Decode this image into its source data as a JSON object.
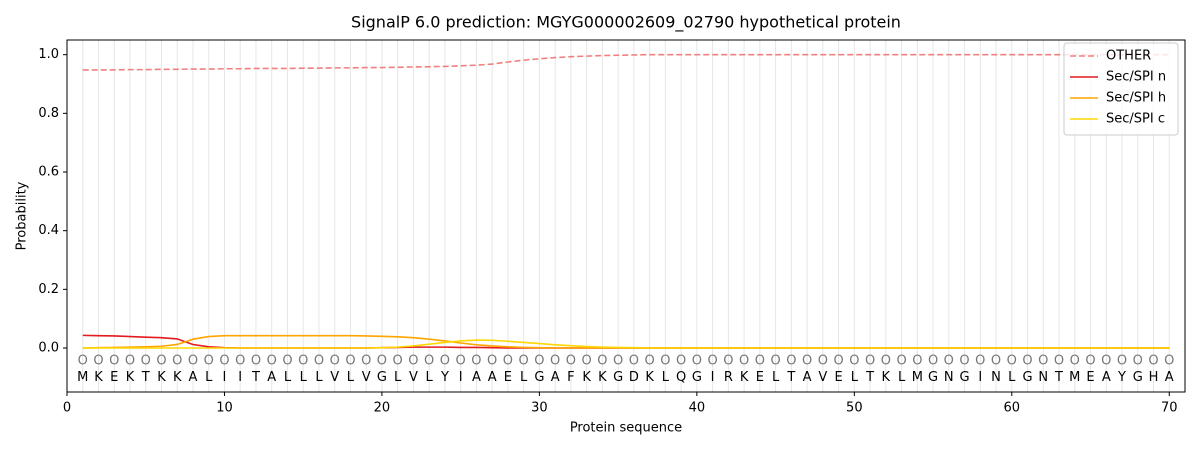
{
  "chart_data": {
    "type": "line",
    "title": "SignalP 6.0 prediction: MGYG000002609_02790 hypothetical protein",
    "xlabel": "Protein sequence",
    "ylabel": "Probability",
    "x": [
      1,
      2,
      3,
      4,
      5,
      6,
      7,
      8,
      9,
      10,
      11,
      12,
      13,
      14,
      15,
      16,
      17,
      18,
      19,
      20,
      21,
      22,
      23,
      24,
      25,
      26,
      27,
      28,
      29,
      30,
      31,
      32,
      33,
      34,
      35,
      36,
      37,
      38,
      39,
      40,
      41,
      42,
      43,
      44,
      45,
      46,
      47,
      48,
      49,
      50,
      51,
      52,
      53,
      54,
      55,
      56,
      57,
      58,
      59,
      60,
      61,
      62,
      63,
      64,
      65,
      66,
      67,
      68,
      69,
      70
    ],
    "residues": [
      "M",
      "K",
      "E",
      "K",
      "T",
      "K",
      "K",
      "A",
      "L",
      "I",
      "I",
      "T",
      "A",
      "L",
      "L",
      "L",
      "V",
      "L",
      "V",
      "G",
      "L",
      "V",
      "L",
      "Y",
      "I",
      "A",
      "A",
      "E",
      "L",
      "G",
      "A",
      "F",
      "K",
      "K",
      "G",
      "D",
      "K",
      "L",
      "Q",
      "G",
      "I",
      "R",
      "K",
      "E",
      "L",
      "T",
      "A",
      "V",
      "E",
      "L",
      "T",
      "K",
      "L",
      "M",
      "G",
      "N",
      "G",
      "I",
      "N",
      "L",
      "G",
      "N",
      "T",
      "M",
      "E",
      "A",
      "Y",
      "G",
      "H",
      "A"
    ],
    "predictions": [
      "O",
      "O",
      "O",
      "O",
      "O",
      "O",
      "O",
      "O",
      "O",
      "O",
      "O",
      "O",
      "O",
      "O",
      "O",
      "O",
      "O",
      "O",
      "O",
      "O",
      "O",
      "O",
      "O",
      "O",
      "O",
      "O",
      "O",
      "O",
      "O",
      "O",
      "O",
      "O",
      "O",
      "O",
      "O",
      "O",
      "O",
      "O",
      "O",
      "O",
      "O",
      "O",
      "O",
      "O",
      "O",
      "O",
      "O",
      "O",
      "O",
      "O",
      "O",
      "O",
      "O",
      "O",
      "O",
      "O",
      "O",
      "O",
      "O",
      "O",
      "O",
      "O",
      "O",
      "O",
      "O",
      "O",
      "O",
      "O",
      "O",
      "O"
    ],
    "series": [
      {
        "name": "OTHER",
        "color": "#f08080",
        "dashed": true,
        "values": [
          0.948,
          0.948,
          0.948,
          0.949,
          0.949,
          0.95,
          0.95,
          0.951,
          0.951,
          0.952,
          0.952,
          0.953,
          0.953,
          0.953,
          0.954,
          0.954,
          0.955,
          0.955,
          0.956,
          0.956,
          0.957,
          0.958,
          0.959,
          0.96,
          0.962,
          0.964,
          0.968,
          0.975,
          0.981,
          0.986,
          0.99,
          0.993,
          0.995,
          0.997,
          0.998,
          0.999,
          1.0,
          1.0,
          1.0,
          1.0,
          1.0,
          1.0,
          1.0,
          1.0,
          1.0,
          1.0,
          1.0,
          1.0,
          1.0,
          1.0,
          1.0,
          1.0,
          1.0,
          1.0,
          1.0,
          1.0,
          1.0,
          1.0,
          1.0,
          1.0,
          1.0,
          1.0,
          1.0,
          1.0,
          1.0,
          1.0,
          1.0,
          1.0,
          1.0,
          1.0
        ]
      },
      {
        "name": "Sec/SPI n",
        "color": "#e41a1c",
        "dashed": false,
        "values": [
          0.043,
          0.042,
          0.041,
          0.039,
          0.037,
          0.035,
          0.031,
          0.012,
          0.004,
          0.001,
          0,
          0,
          0,
          0,
          0,
          0,
          0,
          0,
          0,
          0.001,
          0.002,
          0.003,
          0.003,
          0.003,
          0.002,
          0.002,
          0.001,
          0,
          0,
          0,
          0,
          0,
          0,
          0,
          0,
          0,
          0,
          0,
          0,
          0,
          0,
          0,
          0,
          0,
          0,
          0,
          0,
          0,
          0,
          0,
          0,
          0,
          0,
          0,
          0,
          0,
          0,
          0,
          0,
          0,
          0,
          0,
          0,
          0,
          0,
          0,
          0,
          0,
          0,
          0
        ]
      },
      {
        "name": "Sec/SPI h",
        "color": "#ffa500",
        "dashed": false,
        "values": [
          0,
          0.001,
          0.002,
          0.003,
          0.004,
          0.006,
          0.012,
          0.03,
          0.039,
          0.042,
          0.042,
          0.042,
          0.042,
          0.042,
          0.042,
          0.042,
          0.042,
          0.042,
          0.041,
          0.04,
          0.038,
          0.035,
          0.03,
          0.024,
          0.017,
          0.011,
          0.007,
          0.004,
          0.002,
          0.001,
          0,
          0,
          0,
          0,
          0,
          0,
          0,
          0,
          0,
          0,
          0,
          0,
          0,
          0,
          0,
          0,
          0,
          0,
          0,
          0,
          0,
          0,
          0,
          0,
          0,
          0,
          0,
          0,
          0,
          0,
          0,
          0,
          0,
          0,
          0,
          0,
          0,
          0,
          0,
          0
        ]
      },
      {
        "name": "Sec/SPI c",
        "color": "#ffd700",
        "dashed": false,
        "values": [
          0,
          0,
          0,
          0,
          0,
          0,
          0,
          0,
          0,
          0,
          0,
          0,
          0,
          0,
          0,
          0,
          0,
          0,
          0,
          0.001,
          0.003,
          0.007,
          0.013,
          0.019,
          0.024,
          0.027,
          0.026,
          0.023,
          0.019,
          0.015,
          0.011,
          0.008,
          0.005,
          0.003,
          0.002,
          0.001,
          0,
          0,
          0,
          0,
          0,
          0,
          0,
          0,
          0,
          0,
          0,
          0,
          0,
          0,
          0,
          0,
          0,
          0,
          0,
          0,
          0,
          0,
          0,
          0,
          0,
          0,
          0,
          0,
          0,
          0,
          0,
          0,
          0,
          0
        ]
      }
    ],
    "xlim": [
      0,
      71
    ],
    "ylim": [
      -0.15,
      1.05
    ],
    "xticks": [
      0,
      10,
      20,
      30,
      40,
      50,
      60,
      70
    ],
    "yticks": [
      {
        "value": 0,
        "label": "0.0"
      },
      0.2,
      0.4,
      0.6,
      0.8,
      {
        "value": 1,
        "label": "1.0"
      }
    ],
    "grid": true,
    "legend": "upper right"
  }
}
